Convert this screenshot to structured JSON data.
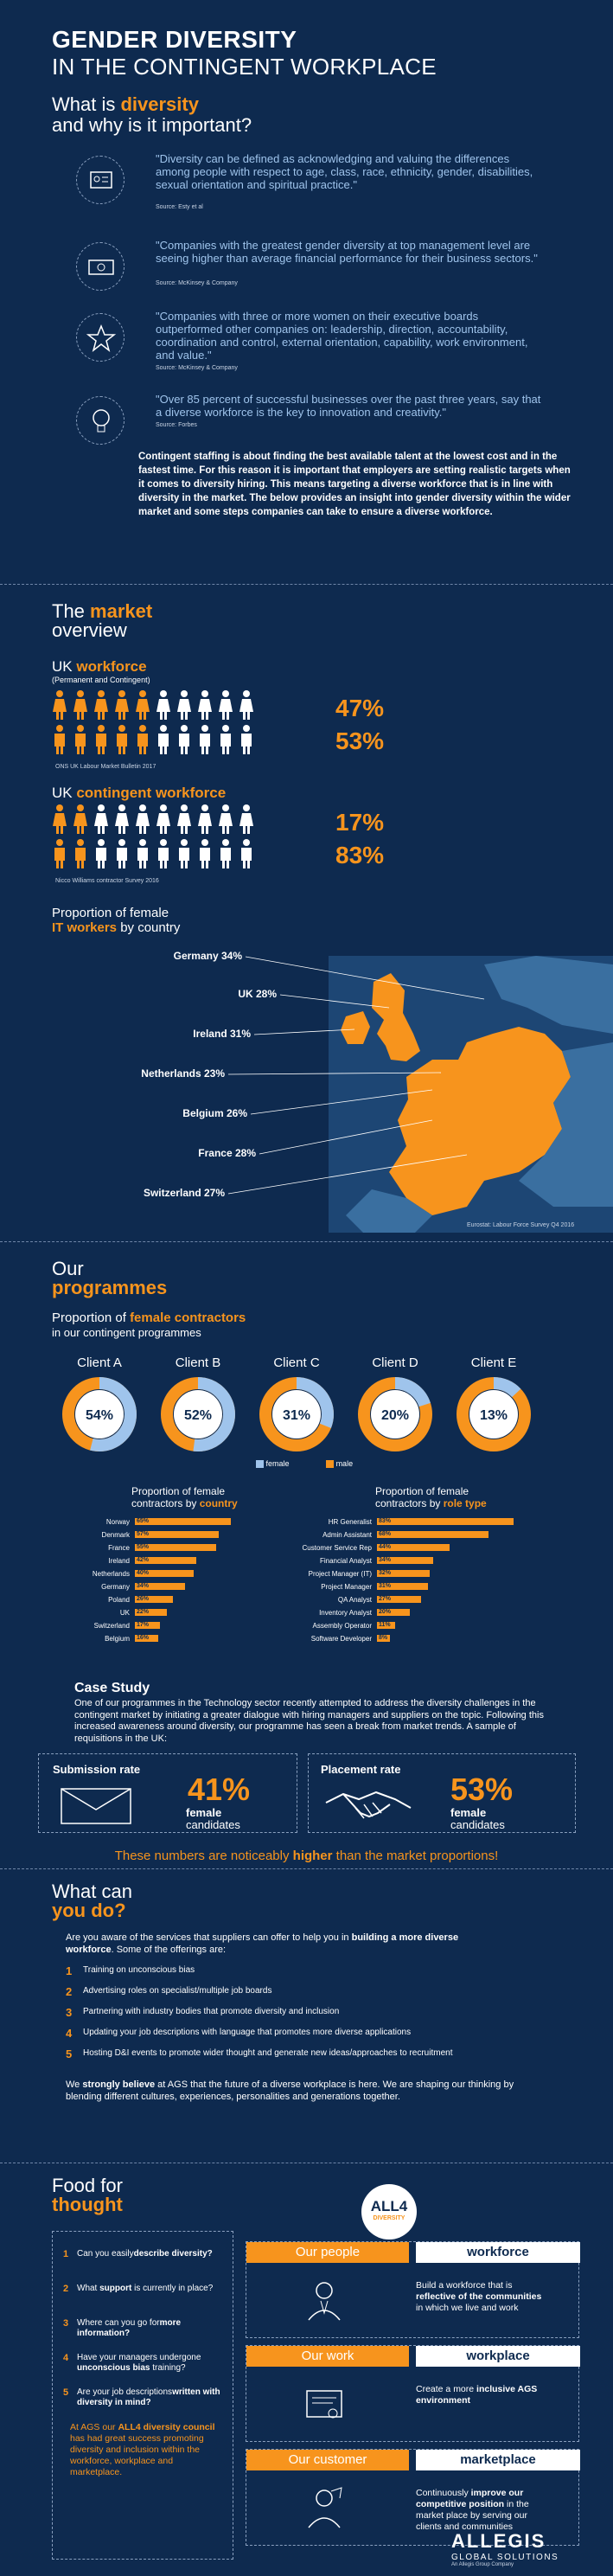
{
  "header": {
    "title": "GENDER DIVERSITY",
    "subtitle": "IN THE CONTINGENT WORKPLACE",
    "question_prefix": "What is ",
    "question_word": "diversity",
    "question_suffix": "and why is it important?"
  },
  "quotes": [
    {
      "text": "\"Diversity can be defined as acknowledging and valuing the differences among people with respect to age, class, race, ethnicity, gender, disabilities, sexual orientation and spiritual practice.\"",
      "source": "Source: Esty et al",
      "icon": "id-card-icon"
    },
    {
      "text": "\"Companies with the greatest gender diversity at top management level are seeing higher than average financial performance for their business sectors.\"",
      "source": "Source: McKinsey & Company",
      "icon": "money-icon"
    },
    {
      "text": "\"Companies with three or more women on their executive boards outperformed other companies on: leadership, direction, accountability, coordination and control, external orientation, capability, work environment, and value.\"",
      "source": "Source: McKinsey & Company",
      "icon": "star-icon"
    },
    {
      "text": "\"Over 85 percent of successful businesses over the past three years, say that a diverse workforce is the key to innovation and creativity.\"",
      "source": "Source: Forbes",
      "icon": "lightbulb-icon"
    }
  ],
  "intro_paragraph": "Contingent staffing is about finding the best available talent at the lowest cost and in the fastest time. For this reason it is important that employers are setting realistic targets when it comes to diversity hiring. This means targeting a diverse workforce that is in line with diversity in the market. The below provides an insight into gender diversity within the wider market and some steps companies can take to ensure a diverse workforce.",
  "market": {
    "heading_prefix": "The ",
    "heading_word": "market",
    "heading_suffix": "overview",
    "uk_workforce": {
      "title_prefix": "UK ",
      "title_word": "workforce",
      "note": "(Permanent and Contingent)",
      "female_pct": "47%",
      "male_pct": "53%",
      "female_share": 0.47,
      "male_share": 0.53,
      "source": "ONS UK Labour Market Bulletin 2017"
    },
    "uk_contingent": {
      "title_prefix": "UK ",
      "title_word": "contingent workforce",
      "female_pct": "17%",
      "male_pct": "83%",
      "female_share": 0.17,
      "male_share": 0.83,
      "source": "Nicco Williams contractor Survey 2016"
    },
    "it_workers": {
      "title_line1": "Proportion of female",
      "title_bold": "IT workers",
      "title_suffix": " by country",
      "countries": [
        {
          "label": "Germany 34%"
        },
        {
          "label": "UK 28%"
        },
        {
          "label": "Ireland 31%"
        },
        {
          "label": "Netherlands 23%"
        },
        {
          "label": "Belgium 26%"
        },
        {
          "label": "France 28%"
        },
        {
          "label": "Switzerland 27%"
        }
      ],
      "source": "Eurostat: Labour Force Survey Q4 2016"
    }
  },
  "programmes": {
    "heading_prefix": "Our",
    "heading_word": "programmes",
    "sub_prefix": "Proportion of ",
    "sub_bold": "female contractors",
    "sub_suffix": "in our contingent programmes",
    "clients": [
      {
        "name": "Client A",
        "pct": "54%",
        "share": 0.54
      },
      {
        "name": "Client B",
        "pct": "52%",
        "share": 0.52
      },
      {
        "name": "Client C",
        "pct": "31%",
        "share": 0.31
      },
      {
        "name": "Client D",
        "pct": "20%",
        "share": 0.2
      },
      {
        "name": "Client E",
        "pct": "13%",
        "share": 0.13
      }
    ],
    "legend": {
      "female": "female",
      "male": "male",
      "female_color": "#9fc4ec",
      "male_color": "#f7941d"
    },
    "by_country": {
      "title_line1": "Proportion of female",
      "title_prefix": "contractors by ",
      "title_bold": "country",
      "rows": [
        {
          "label": "Norway",
          "value": 65
        },
        {
          "label": "Denmark",
          "value": 57
        },
        {
          "label": "France",
          "value": 55
        },
        {
          "label": "Ireland",
          "value": 42
        },
        {
          "label": "Netherlands",
          "value": 40
        },
        {
          "label": "Germany",
          "value": 34
        },
        {
          "label": "Poland",
          "value": 26
        },
        {
          "label": "UK",
          "value": 22
        },
        {
          "label": "Switzerland",
          "value": 17
        },
        {
          "label": "Belgium",
          "value": 16
        }
      ]
    },
    "by_role": {
      "title_line1": "Proportion of female",
      "title_prefix": "contractors by ",
      "title_bold": "role type",
      "rows": [
        {
          "label": "HR Generalist",
          "value": 83
        },
        {
          "label": "Admin Assistant",
          "value": 68
        },
        {
          "label": "Customer Service Rep",
          "value": 44
        },
        {
          "label": "Financial Analyst",
          "value": 34
        },
        {
          "label": "Project Manager (IT)",
          "value": 32
        },
        {
          "label": "Project Manager",
          "value": 31
        },
        {
          "label": "QA Analyst",
          "value": 27
        },
        {
          "label": "Inventory Analyst",
          "value": 20
        },
        {
          "label": "Assembly Operator",
          "value": 11
        },
        {
          "label": "Software Developer",
          "value": 8
        }
      ]
    },
    "case_study": {
      "title": "Case Study",
      "text": "One of our programmes in the Technology sector recently attempted to address the diversity challenges in the contingent market by initiating a greater dialogue with hiring managers and suppliers on the topic. Following this increased awareness around diversity, our programme has seen a break from market trends. A sample of requisitions in the UK:",
      "submission_label": "Submission rate",
      "submission_pct": "41%",
      "submission_caption1": "female",
      "submission_caption2": "candidates",
      "placement_label": "Placement rate",
      "placement_pct": "53%",
      "placement_caption1": "female",
      "placement_caption2": "candidates",
      "footer_prefix": "These numbers are noticeably ",
      "footer_bold": "higher",
      "footer_suffix": " than the market proportions!"
    }
  },
  "what_can": {
    "heading_line1": "What can",
    "heading_line2": "you do?",
    "intro_prefix": "Are you aware of the services that suppliers can offer to help you in ",
    "intro_bold": "building a more diverse workforce",
    "intro_suffix": ". Some of the offerings are:",
    "items": [
      {
        "num": "1",
        "text": "Training on unconscious bias"
      },
      {
        "num": "2",
        "text": "Advertising roles on specialist/multiple job boards"
      },
      {
        "num": "3",
        "text": "Partnering with industry bodies that promote diversity and inclusion"
      },
      {
        "num": "4",
        "text": "Updating your job descriptions with language that promotes more diverse applications"
      },
      {
        "num": "5",
        "text": "Hosting D&I events to promote wider thought and generate new ideas/approaches to recruitment"
      }
    ],
    "closing_prefix": "We ",
    "closing_bold": "strongly believe",
    "closing_suffix": " at AGS that the future of a diverse workplace is here. We are shaping our thinking by blending different cultures, experiences, personalities and generations together."
  },
  "food": {
    "heading_line1": "Food for",
    "heading_line2": "thought",
    "questions": [
      {
        "num": "1",
        "a": "Can you easily",
        "b": "describe diversity?"
      },
      {
        "num": "2",
        "a": "What ",
        "b": "support",
        "c": " is currently in place?"
      },
      {
        "num": "3",
        "a": "Where can you go for",
        "b": "more information?"
      },
      {
        "num": "4",
        "a": "Have your managers undergone ",
        "b": "unconscious bias",
        "c": " training?"
      },
      {
        "num": "5",
        "a": "Are your job descriptions",
        "b": "written with diversity in mind?"
      }
    ],
    "council_prefix": "At AGS our ",
    "council_bold": "ALL4 diversity council",
    "council_suffix": " has had great success promoting diversity and inclusion within the workforce, workplace and marketplace.",
    "badge_top": "ALL4",
    "badge_bottom": "DIVERSITY",
    "pillars": [
      {
        "left": "Our people",
        "right": "workforce",
        "text_a": "Build a workforce that is ",
        "text_b": "reflective of the communities",
        "text_c": " in which we live and work",
        "icon": "person-icon"
      },
      {
        "left": "Our work",
        "right": "workplace",
        "text_a": "Create a more ",
        "text_b": "inclusive AGS environment",
        "text_c": "",
        "icon": "certificate-icon"
      },
      {
        "left": "Our customer",
        "right": "marketplace",
        "text_a": "Continuously ",
        "text_b": "improve our competitive position",
        "text_c": " in the market place by serving our clients and communities",
        "icon": "customer-icon"
      }
    ],
    "logo_top": "ALLEGIS",
    "logo_mid": "GLOBAL SOLUTIONS",
    "logo_bottom": "An Allegis Group Company"
  },
  "colors": {
    "background": "#0e2a4f",
    "accent": "#f7941d",
    "light_blue": "#9fc4ec",
    "map_blue": "#3a6fa0"
  }
}
